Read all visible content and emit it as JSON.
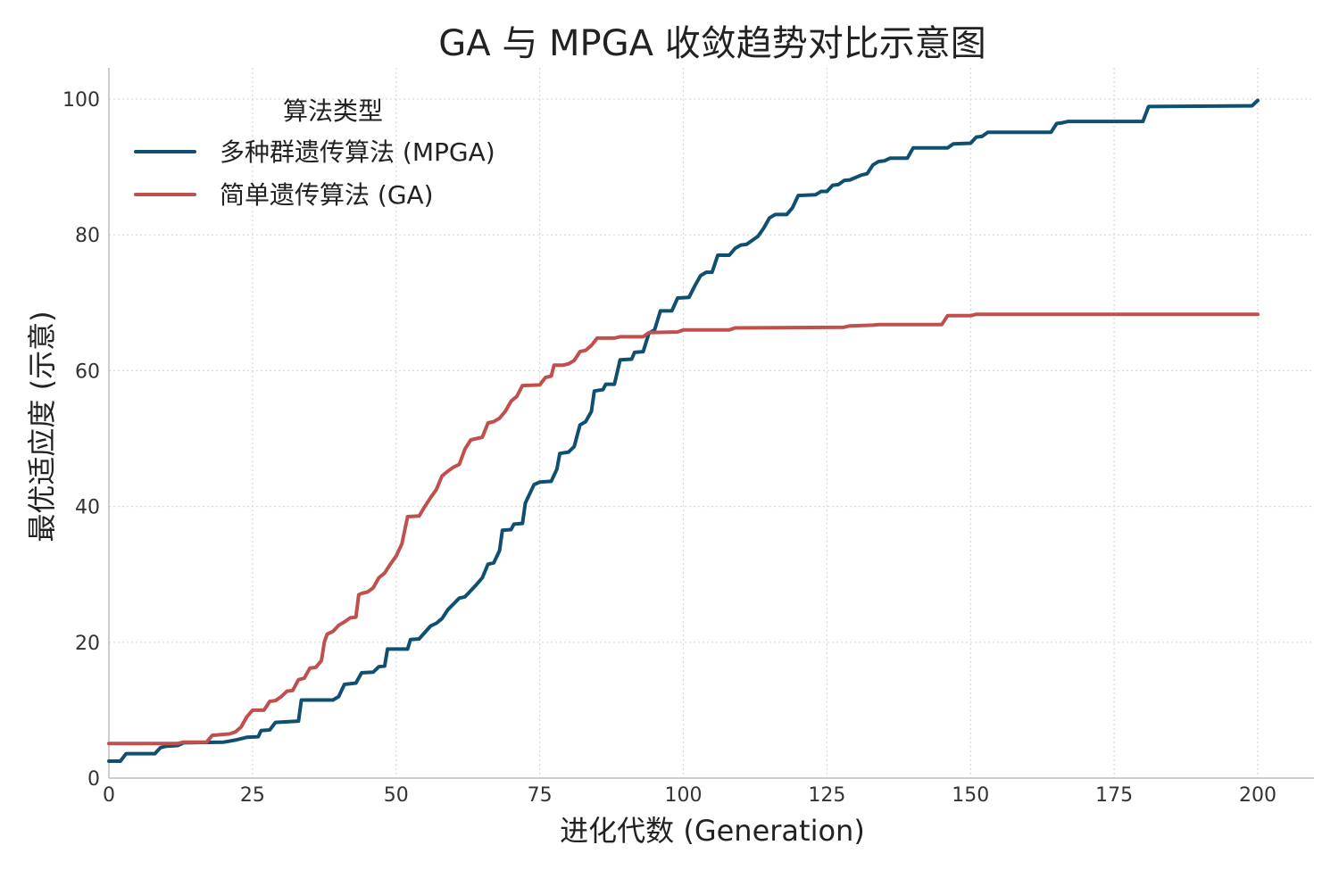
{
  "chart_data": {
    "type": "line",
    "title": "GA 与 MPGA 收敛趋势对比示意图",
    "xlabel": "进化代数 (Generation)",
    "ylabel": "最优适应度 (示意)",
    "xlim": [
      0,
      210
    ],
    "ylim": [
      0,
      105
    ],
    "xticks": [
      0,
      25,
      50,
      75,
      100,
      125,
      150,
      175,
      200
    ],
    "yticks": [
      0,
      20,
      40,
      60,
      80,
      100
    ],
    "grid": true,
    "legend": {
      "title": "算法类型",
      "position": "top-left"
    },
    "series": [
      {
        "name": "多种群遗传算法 (MPGA)",
        "color": "#0f5071",
        "points": [
          [
            0,
            2.5
          ],
          [
            2,
            2.5
          ],
          [
            3,
            3.6
          ],
          [
            8,
            3.6
          ],
          [
            9,
            4.5
          ],
          [
            10,
            4.7
          ],
          [
            12,
            4.8
          ],
          [
            13,
            5.2
          ],
          [
            20,
            5.3
          ],
          [
            22,
            5.6
          ],
          [
            24,
            6.0
          ],
          [
            26,
            6.1
          ],
          [
            26.5,
            7.0
          ],
          [
            28,
            7.1
          ],
          [
            29,
            8.2
          ],
          [
            33,
            8.4
          ],
          [
            33.5,
            11.5
          ],
          [
            39,
            11.5
          ],
          [
            40,
            12.0
          ],
          [
            41,
            13.8
          ],
          [
            43,
            14.0
          ],
          [
            44,
            15.5
          ],
          [
            46,
            15.6
          ],
          [
            47,
            16.4
          ],
          [
            48,
            16.5
          ],
          [
            48.5,
            19.0
          ],
          [
            52,
            19.0
          ],
          [
            52.5,
            20.4
          ],
          [
            54,
            20.5
          ],
          [
            56,
            22.4
          ],
          [
            57,
            22.8
          ],
          [
            58,
            23.5
          ],
          [
            59,
            24.8
          ],
          [
            61,
            26.5
          ],
          [
            62,
            26.7
          ],
          [
            64,
            28.5
          ],
          [
            65,
            29.5
          ],
          [
            66,
            31.5
          ],
          [
            67,
            31.7
          ],
          [
            68,
            33.5
          ],
          [
            68.5,
            36.5
          ],
          [
            70,
            36.6
          ],
          [
            70.5,
            37.4
          ],
          [
            72,
            37.5
          ],
          [
            72.5,
            40.5
          ],
          [
            74,
            43.2
          ],
          [
            75,
            43.6
          ],
          [
            77,
            43.7
          ],
          [
            78,
            45.5
          ],
          [
            78.5,
            47.8
          ],
          [
            80,
            48.0
          ],
          [
            81,
            48.8
          ],
          [
            82,
            52.0
          ],
          [
            83,
            52.5
          ],
          [
            84,
            54.0
          ],
          [
            84.5,
            57.0
          ],
          [
            86,
            57.2
          ],
          [
            86.5,
            58.0
          ],
          [
            88,
            58.0
          ],
          [
            89,
            61.6
          ],
          [
            91,
            61.7
          ],
          [
            91.5,
            62.7
          ],
          [
            93,
            62.8
          ],
          [
            94,
            65.5
          ],
          [
            95,
            66.0
          ],
          [
            96,
            68.8
          ],
          [
            98,
            68.8
          ],
          [
            99,
            70.7
          ],
          [
            101,
            70.8
          ],
          [
            102,
            72.5
          ],
          [
            103,
            74.0
          ],
          [
            104,
            74.5
          ],
          [
            105,
            74.5
          ],
          [
            106,
            77.0
          ],
          [
            108,
            77.0
          ],
          [
            109,
            78.0
          ],
          [
            110,
            78.5
          ],
          [
            111,
            78.6
          ],
          [
            113,
            79.8
          ],
          [
            114,
            81.0
          ],
          [
            115,
            82.5
          ],
          [
            116,
            83.0
          ],
          [
            118,
            83.0
          ],
          [
            119,
            84.0
          ],
          [
            120,
            85.8
          ],
          [
            123,
            85.9
          ],
          [
            124,
            86.4
          ],
          [
            125,
            86.4
          ],
          [
            126,
            87.3
          ],
          [
            127,
            87.4
          ],
          [
            128,
            88.0
          ],
          [
            129,
            88.1
          ],
          [
            131,
            88.8
          ],
          [
            132,
            89.0
          ],
          [
            133,
            90.3
          ],
          [
            134,
            90.8
          ],
          [
            135,
            90.9
          ],
          [
            136,
            91.3
          ],
          [
            139,
            91.3
          ],
          [
            140,
            92.8
          ],
          [
            146,
            92.8
          ],
          [
            147,
            93.4
          ],
          [
            150,
            93.5
          ],
          [
            151,
            94.4
          ],
          [
            152,
            94.5
          ],
          [
            153,
            95.1
          ],
          [
            164,
            95.1
          ],
          [
            165,
            96.4
          ],
          [
            166,
            96.5
          ],
          [
            167,
            96.7
          ],
          [
            180,
            96.7
          ],
          [
            181,
            98.9
          ],
          [
            199,
            99.0
          ],
          [
            200,
            99.8
          ]
        ]
      },
      {
        "name": "简单遗传算法 (GA)",
        "color": "#c0504d",
        "points": [
          [
            0,
            5.1
          ],
          [
            12,
            5.1
          ],
          [
            13,
            5.3
          ],
          [
            17,
            5.3
          ],
          [
            18,
            6.3
          ],
          [
            21,
            6.5
          ],
          [
            22,
            6.8
          ],
          [
            23,
            7.5
          ],
          [
            24,
            9.0
          ],
          [
            25,
            10.0
          ],
          [
            27,
            10.0
          ],
          [
            28,
            11.3
          ],
          [
            29,
            11.4
          ],
          [
            30,
            12.0
          ],
          [
            31,
            12.8
          ],
          [
            32,
            12.9
          ],
          [
            33,
            14.5
          ],
          [
            34,
            14.7
          ],
          [
            35,
            16.2
          ],
          [
            36,
            16.3
          ],
          [
            37,
            17.3
          ],
          [
            37.5,
            20.0
          ],
          [
            38,
            21.2
          ],
          [
            39,
            21.6
          ],
          [
            40,
            22.5
          ],
          [
            41,
            23.0
          ],
          [
            42,
            23.6
          ],
          [
            43,
            23.7
          ],
          [
            43.5,
            27.0
          ],
          [
            44,
            27.2
          ],
          [
            45,
            27.4
          ],
          [
            46,
            28.0
          ],
          [
            47,
            29.5
          ],
          [
            48,
            30.2
          ],
          [
            49,
            31.5
          ],
          [
            50,
            32.7
          ],
          [
            51,
            34.5
          ],
          [
            52,
            38.5
          ],
          [
            54,
            38.6
          ],
          [
            55,
            40.0
          ],
          [
            56,
            41.3
          ],
          [
            57,
            42.5
          ],
          [
            58,
            44.5
          ],
          [
            59,
            45.2
          ],
          [
            60,
            45.8
          ],
          [
            61,
            46.2
          ],
          [
            62,
            48.5
          ],
          [
            63,
            49.8
          ],
          [
            64,
            50.0
          ],
          [
            65,
            50.2
          ],
          [
            66,
            52.3
          ],
          [
            67,
            52.5
          ],
          [
            68,
            53.0
          ],
          [
            69,
            54.0
          ],
          [
            70,
            55.5
          ],
          [
            71,
            56.2
          ],
          [
            72,
            57.8
          ],
          [
            75,
            57.9
          ],
          [
            76,
            59.0
          ],
          [
            77,
            59.2
          ],
          [
            77.5,
            60.8
          ],
          [
            79,
            60.8
          ],
          [
            80,
            61.0
          ],
          [
            81,
            61.5
          ],
          [
            82,
            62.8
          ],
          [
            83,
            63.0
          ],
          [
            84,
            63.7
          ],
          [
            85,
            64.8
          ],
          [
            88,
            64.8
          ],
          [
            89,
            65.0
          ],
          [
            93,
            65.0
          ],
          [
            94,
            65.6
          ],
          [
            99,
            65.7
          ],
          [
            100,
            66.0
          ],
          [
            108,
            66.0
          ],
          [
            109,
            66.3
          ],
          [
            128,
            66.4
          ],
          [
            129,
            66.6
          ],
          [
            133,
            66.7
          ],
          [
            134,
            66.8
          ],
          [
            145,
            66.8
          ],
          [
            146,
            68.1
          ],
          [
            150,
            68.1
          ],
          [
            151,
            68.3
          ],
          [
            199,
            68.3
          ],
          [
            200,
            68.3
          ]
        ]
      }
    ]
  }
}
